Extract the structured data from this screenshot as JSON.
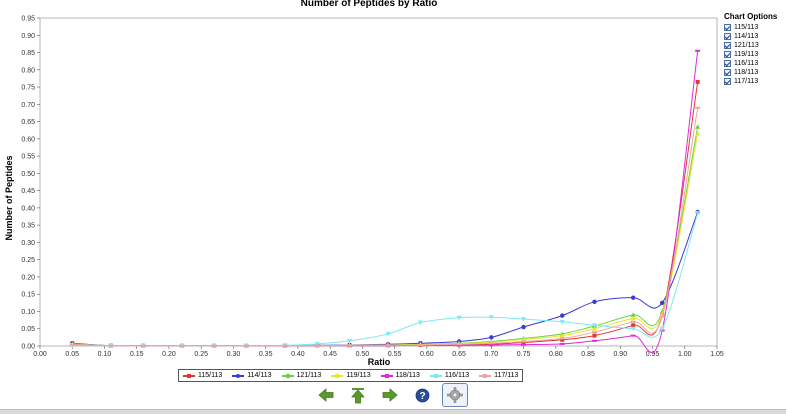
{
  "chart_data": {
    "type": "line",
    "title": "Number of Peptides by Ratio",
    "xlabel": "Ratio",
    "ylabel": "Number of Peptides",
    "xlim": [
      0.0,
      1.05
    ],
    "ylim": [
      0.0,
      0.95
    ],
    "xticks": [
      "0.00",
      "0.05",
      "0.10",
      "0.15",
      "0.20",
      "0.25",
      "0.30",
      "0.35",
      "0.40",
      "0.45",
      "0.50",
      "0.55",
      "0.60",
      "0.65",
      "0.70",
      "0.75",
      "0.80",
      "0.85",
      "0.90",
      "0.95",
      "1.00",
      "1.05"
    ],
    "yticks": [
      "0.00",
      "0.05",
      "0.10",
      "0.15",
      "0.20",
      "0.25",
      "0.30",
      "0.35",
      "0.40",
      "0.45",
      "0.50",
      "0.55",
      "0.60",
      "0.65",
      "0.70",
      "0.75",
      "0.80",
      "0.85",
      "0.90",
      "0.95"
    ],
    "grid": false,
    "legend_position": "bottom",
    "series": [
      {
        "name": "115/113",
        "color": "#e0353b",
        "marker": "square",
        "x": [
          0.05,
          0.11,
          0.16,
          0.22,
          0.27,
          0.32,
          0.38,
          0.43,
          0.48,
          0.54,
          0.59,
          0.65,
          0.7,
          0.75,
          0.81,
          0.86,
          0.92,
          0.965,
          1.02
        ],
        "y": [
          0.005,
          0.001,
          0.0005,
          0.0005,
          0.0005,
          0.0005,
          0.001,
          0.001,
          0.002,
          0.002,
          0.003,
          0.004,
          0.005,
          0.01,
          0.018,
          0.03,
          0.06,
          0.09,
          0.765
        ]
      },
      {
        "name": "114/113",
        "color": "#3b3bd6",
        "marker": "circle",
        "x": [
          0.05,
          0.11,
          0.16,
          0.22,
          0.27,
          0.32,
          0.38,
          0.43,
          0.48,
          0.54,
          0.59,
          0.65,
          0.7,
          0.75,
          0.81,
          0.86,
          0.92,
          0.965,
          1.02
        ],
        "y": [
          0.008,
          0.001,
          0.0005,
          0.0005,
          0.0005,
          0.0005,
          0.001,
          0.002,
          0.003,
          0.005,
          0.008,
          0.013,
          0.025,
          0.055,
          0.088,
          0.128,
          0.14,
          0.125,
          0.388
        ]
      },
      {
        "name": "121/113",
        "color": "#6ed23c",
        "marker": "triangle",
        "x": [
          0.05,
          0.11,
          0.16,
          0.22,
          0.27,
          0.32,
          0.38,
          0.43,
          0.48,
          0.54,
          0.59,
          0.65,
          0.7,
          0.75,
          0.81,
          0.86,
          0.92,
          0.965,
          1.02
        ],
        "y": [
          0.006,
          0.001,
          0.0005,
          0.0005,
          0.0005,
          0.0005,
          0.001,
          0.001,
          0.002,
          0.003,
          0.005,
          0.008,
          0.013,
          0.022,
          0.035,
          0.058,
          0.09,
          0.1,
          0.635
        ]
      },
      {
        "name": "119/113",
        "color": "#e8e82a",
        "marker": "triangle",
        "x": [
          0.05,
          0.11,
          0.16,
          0.22,
          0.27,
          0.32,
          0.38,
          0.43,
          0.48,
          0.54,
          0.59,
          0.65,
          0.7,
          0.75,
          0.81,
          0.86,
          0.92,
          0.965,
          1.02
        ],
        "y": [
          0.005,
          0.001,
          0.0005,
          0.0005,
          0.0005,
          0.0005,
          0.001,
          0.001,
          0.002,
          0.003,
          0.004,
          0.007,
          0.011,
          0.019,
          0.03,
          0.05,
          0.08,
          0.092,
          0.615
        ]
      },
      {
        "name": "118/113",
        "color": "#e02ad9",
        "marker": "dash",
        "x": [
          0.05,
          0.11,
          0.16,
          0.22,
          0.27,
          0.32,
          0.38,
          0.43,
          0.48,
          0.54,
          0.59,
          0.65,
          0.7,
          0.75,
          0.81,
          0.86,
          0.92,
          0.965,
          1.02
        ],
        "y": [
          0.004,
          0.001,
          0.0005,
          0.0005,
          0.0005,
          0.0005,
          0.0005,
          0.001,
          0.001,
          0.001,
          0.002,
          0.002,
          0.003,
          0.004,
          0.006,
          0.015,
          0.03,
          0.045,
          0.855
        ]
      },
      {
        "name": "116/113",
        "color": "#7fe8f2",
        "marker": "triangle-down",
        "x": [
          0.05,
          0.11,
          0.16,
          0.22,
          0.27,
          0.32,
          0.38,
          0.43,
          0.48,
          0.54,
          0.59,
          0.65,
          0.7,
          0.75,
          0.81,
          0.86,
          0.92,
          0.965,
          1.02
        ],
        "y": [
          0.003,
          0.0005,
          0.0005,
          0.0005,
          0.0005,
          0.001,
          0.002,
          0.006,
          0.015,
          0.035,
          0.068,
          0.082,
          0.083,
          0.078,
          0.07,
          0.06,
          0.05,
          0.05,
          0.385
        ]
      },
      {
        "name": "117/113",
        "color": "#f2a3a3",
        "marker": "dash",
        "x": [
          0.05,
          0.11,
          0.16,
          0.22,
          0.27,
          0.32,
          0.38,
          0.43,
          0.48,
          0.54,
          0.59,
          0.65,
          0.7,
          0.75,
          0.81,
          0.86,
          0.92,
          0.965,
          1.02
        ],
        "y": [
          0.004,
          0.001,
          0.0005,
          0.0005,
          0.0005,
          0.0005,
          0.001,
          0.001,
          0.002,
          0.002,
          0.003,
          0.005,
          0.008,
          0.013,
          0.022,
          0.04,
          0.07,
          0.085,
          0.69
        ]
      }
    ]
  },
  "chart_options": {
    "title": "Chart Options",
    "items": [
      "115/113",
      "114/113",
      "121/113",
      "119/113",
      "116/113",
      "118/113",
      "117/113"
    ]
  },
  "toolbar": {
    "icons": [
      "arrow-left-icon",
      "arrow-up-icon",
      "arrow-right-icon",
      "help-icon",
      "gear-icon"
    ],
    "colors": {
      "arrow": "#5a9a2a",
      "help": "#2a4f9a"
    }
  }
}
